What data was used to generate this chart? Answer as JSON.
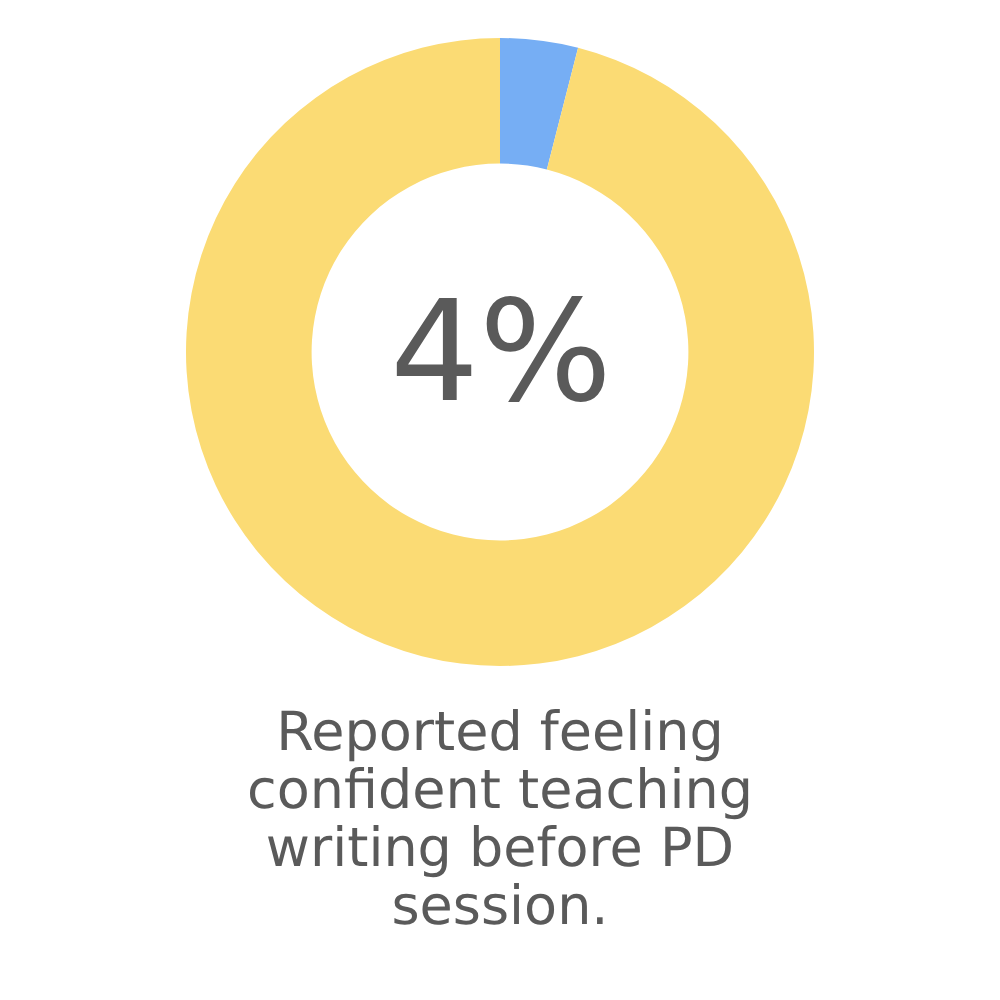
{
  "chart_data": {
    "type": "donut",
    "title": "Reported feeling confident teaching writing before PD session.",
    "categories": [
      null,
      null
    ],
    "values": [
      4,
      96
    ],
    "colors": [
      "#76aef4",
      "#fbdb74"
    ],
    "value_labels": [
      "4%",
      null
    ]
  }
}
